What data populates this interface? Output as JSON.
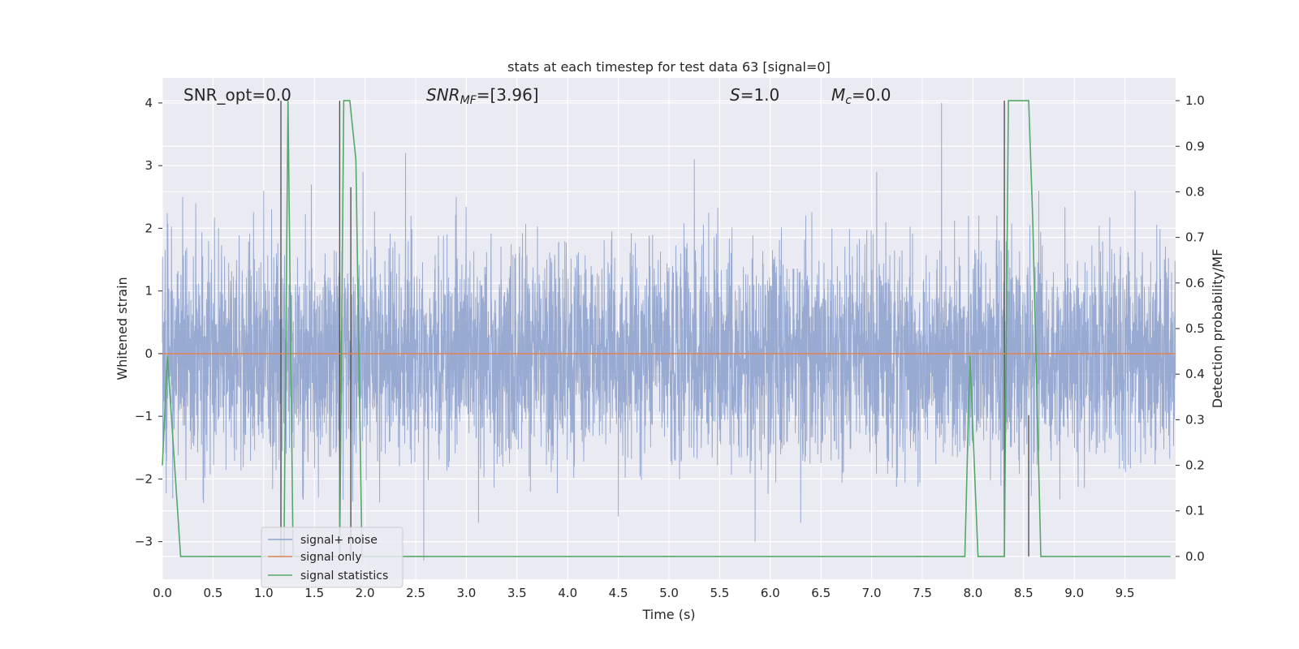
{
  "chart_data": {
    "type": "line",
    "title": "stats at each timestep for test data 63 [signal=0]",
    "xlabel": "Time (s)",
    "ylabel": "Whitened strain",
    "y2label": "Detection probability/MF",
    "xlim": [
      0,
      10
    ],
    "ylim": [
      -3.6,
      4.4
    ],
    "y2lim": [
      -0.05,
      1.05
    ],
    "xticks": [
      "0.0",
      "0.5",
      "1.0",
      "1.5",
      "2.0",
      "2.5",
      "3.0",
      "3.5",
      "4.0",
      "4.5",
      "5.0",
      "5.5",
      "6.0",
      "6.5",
      "7.0",
      "7.5",
      "8.0",
      "8.5",
      "9.0",
      "9.5"
    ],
    "yticks": [
      "−3",
      "−2",
      "−1",
      "0",
      "1",
      "2",
      "3",
      "4"
    ],
    "y2ticks": [
      "0.0",
      "0.1",
      "0.2",
      "0.3",
      "0.4",
      "0.5",
      "0.6",
      "0.7",
      "0.8",
      "0.9",
      "1.0"
    ],
    "grid": true,
    "legend_position": "lower-left",
    "annotations": {
      "snr_opt": "SNR_opt=0.0",
      "snr_mf_prefix": "SNR",
      "snr_mf_sub": "MF",
      "snr_mf_suffix": "=[3.96]",
      "s_sym": "S",
      "s_val": "=1.0",
      "mc_sym": "M",
      "mc_sub": "c",
      "mc_val": "=0.0"
    },
    "series": [
      {
        "name": "signal+ noise",
        "color": "#8fa3cd",
        "noise_std": 0.85,
        "spikes": [
          {
            "x": 0.2,
            "y": 2.5
          },
          {
            "x": 0.33,
            "y": 2.4
          },
          {
            "x": 1.0,
            "y": 2.6
          },
          {
            "x": 1.47,
            "y": 2.7
          },
          {
            "x": 1.75,
            "y": -2.6
          },
          {
            "x": 1.98,
            "y": 2.9
          },
          {
            "x": 2.4,
            "y": 3.2
          },
          {
            "x": 2.58,
            "y": -3.3
          },
          {
            "x": 2.9,
            "y": 2.5
          },
          {
            "x": 3.12,
            "y": -2.7
          },
          {
            "x": 4.5,
            "y": -2.6
          },
          {
            "x": 5.25,
            "y": 3.1
          },
          {
            "x": 5.85,
            "y": -3.0
          },
          {
            "x": 6.3,
            "y": -2.7
          },
          {
            "x": 7.05,
            "y": 2.9
          },
          {
            "x": 7.69,
            "y": 4.0
          },
          {
            "x": 8.65,
            "y": 2.6
          },
          {
            "x": 9.6,
            "y": 2.6
          }
        ]
      },
      {
        "name": "signal only",
        "color": "#dd8452",
        "x": [
          0,
          10
        ],
        "y": [
          0,
          0
        ]
      },
      {
        "name": "signal statistics",
        "color": "#55a868",
        "axis": "right",
        "x": [
          0.0,
          0.05,
          0.18,
          0.23,
          1.17,
          1.2,
          1.24,
          1.29,
          1.33,
          1.75,
          1.79,
          1.85,
          1.91,
          1.97,
          2.02,
          7.92,
          7.97,
          8.05,
          8.31,
          8.35,
          8.55,
          8.59,
          8.67,
          9.95
        ],
        "y": [
          0.2,
          0.44,
          0.0,
          0.0,
          0.0,
          0.0,
          1.0,
          0.0,
          0.0,
          0.0,
          1.0,
          1.0,
          0.87,
          0.0,
          0.0,
          0.0,
          0.44,
          0.0,
          0.0,
          1.0,
          1.0,
          0.74,
          0.0,
          0.0
        ]
      }
    ],
    "mf_lines": [
      {
        "x": 1.17,
        "y": 1.0
      },
      {
        "x": 1.75,
        "y": 1.0
      },
      {
        "x": 1.86,
        "y": 0.81
      },
      {
        "x": 8.31,
        "y": 1.0
      },
      {
        "x": 8.55,
        "y": 0.31
      }
    ]
  }
}
